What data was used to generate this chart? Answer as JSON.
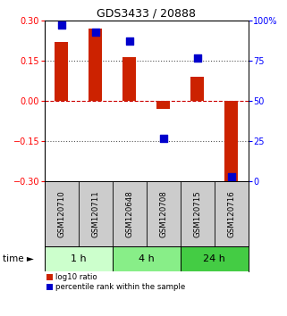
{
  "title": "GDS3433 / 20888",
  "samples": [
    "GSM120710",
    "GSM120711",
    "GSM120648",
    "GSM120708",
    "GSM120715",
    "GSM120716"
  ],
  "log10_ratio": [
    0.22,
    0.27,
    0.165,
    -0.03,
    0.09,
    -0.305
  ],
  "percentile_rank": [
    97,
    93,
    87,
    27,
    77,
    3
  ],
  "groups": [
    {
      "label": "1 h",
      "indices": [
        0,
        1
      ],
      "color": "#ccffcc"
    },
    {
      "label": "4 h",
      "indices": [
        2,
        3
      ],
      "color": "#88ee88"
    },
    {
      "label": "24 h",
      "indices": [
        4,
        5
      ],
      "color": "#44cc44"
    }
  ],
  "ylim_left": [
    -0.3,
    0.3
  ],
  "ylim_right": [
    0,
    100
  ],
  "yticks_left": [
    -0.3,
    -0.15,
    0.0,
    0.15,
    0.3
  ],
  "yticks_right": [
    0,
    25,
    50,
    75,
    100
  ],
  "bar_color": "#cc2200",
  "dot_color": "#0000cc",
  "hline_zero_color": "#cc0000",
  "hline_dotted_color": "#555555",
  "sample_bg_color": "#cccccc",
  "background_color": "#ffffff",
  "bar_width": 0.4,
  "dot_size": 28,
  "time_arrow": "time ►"
}
